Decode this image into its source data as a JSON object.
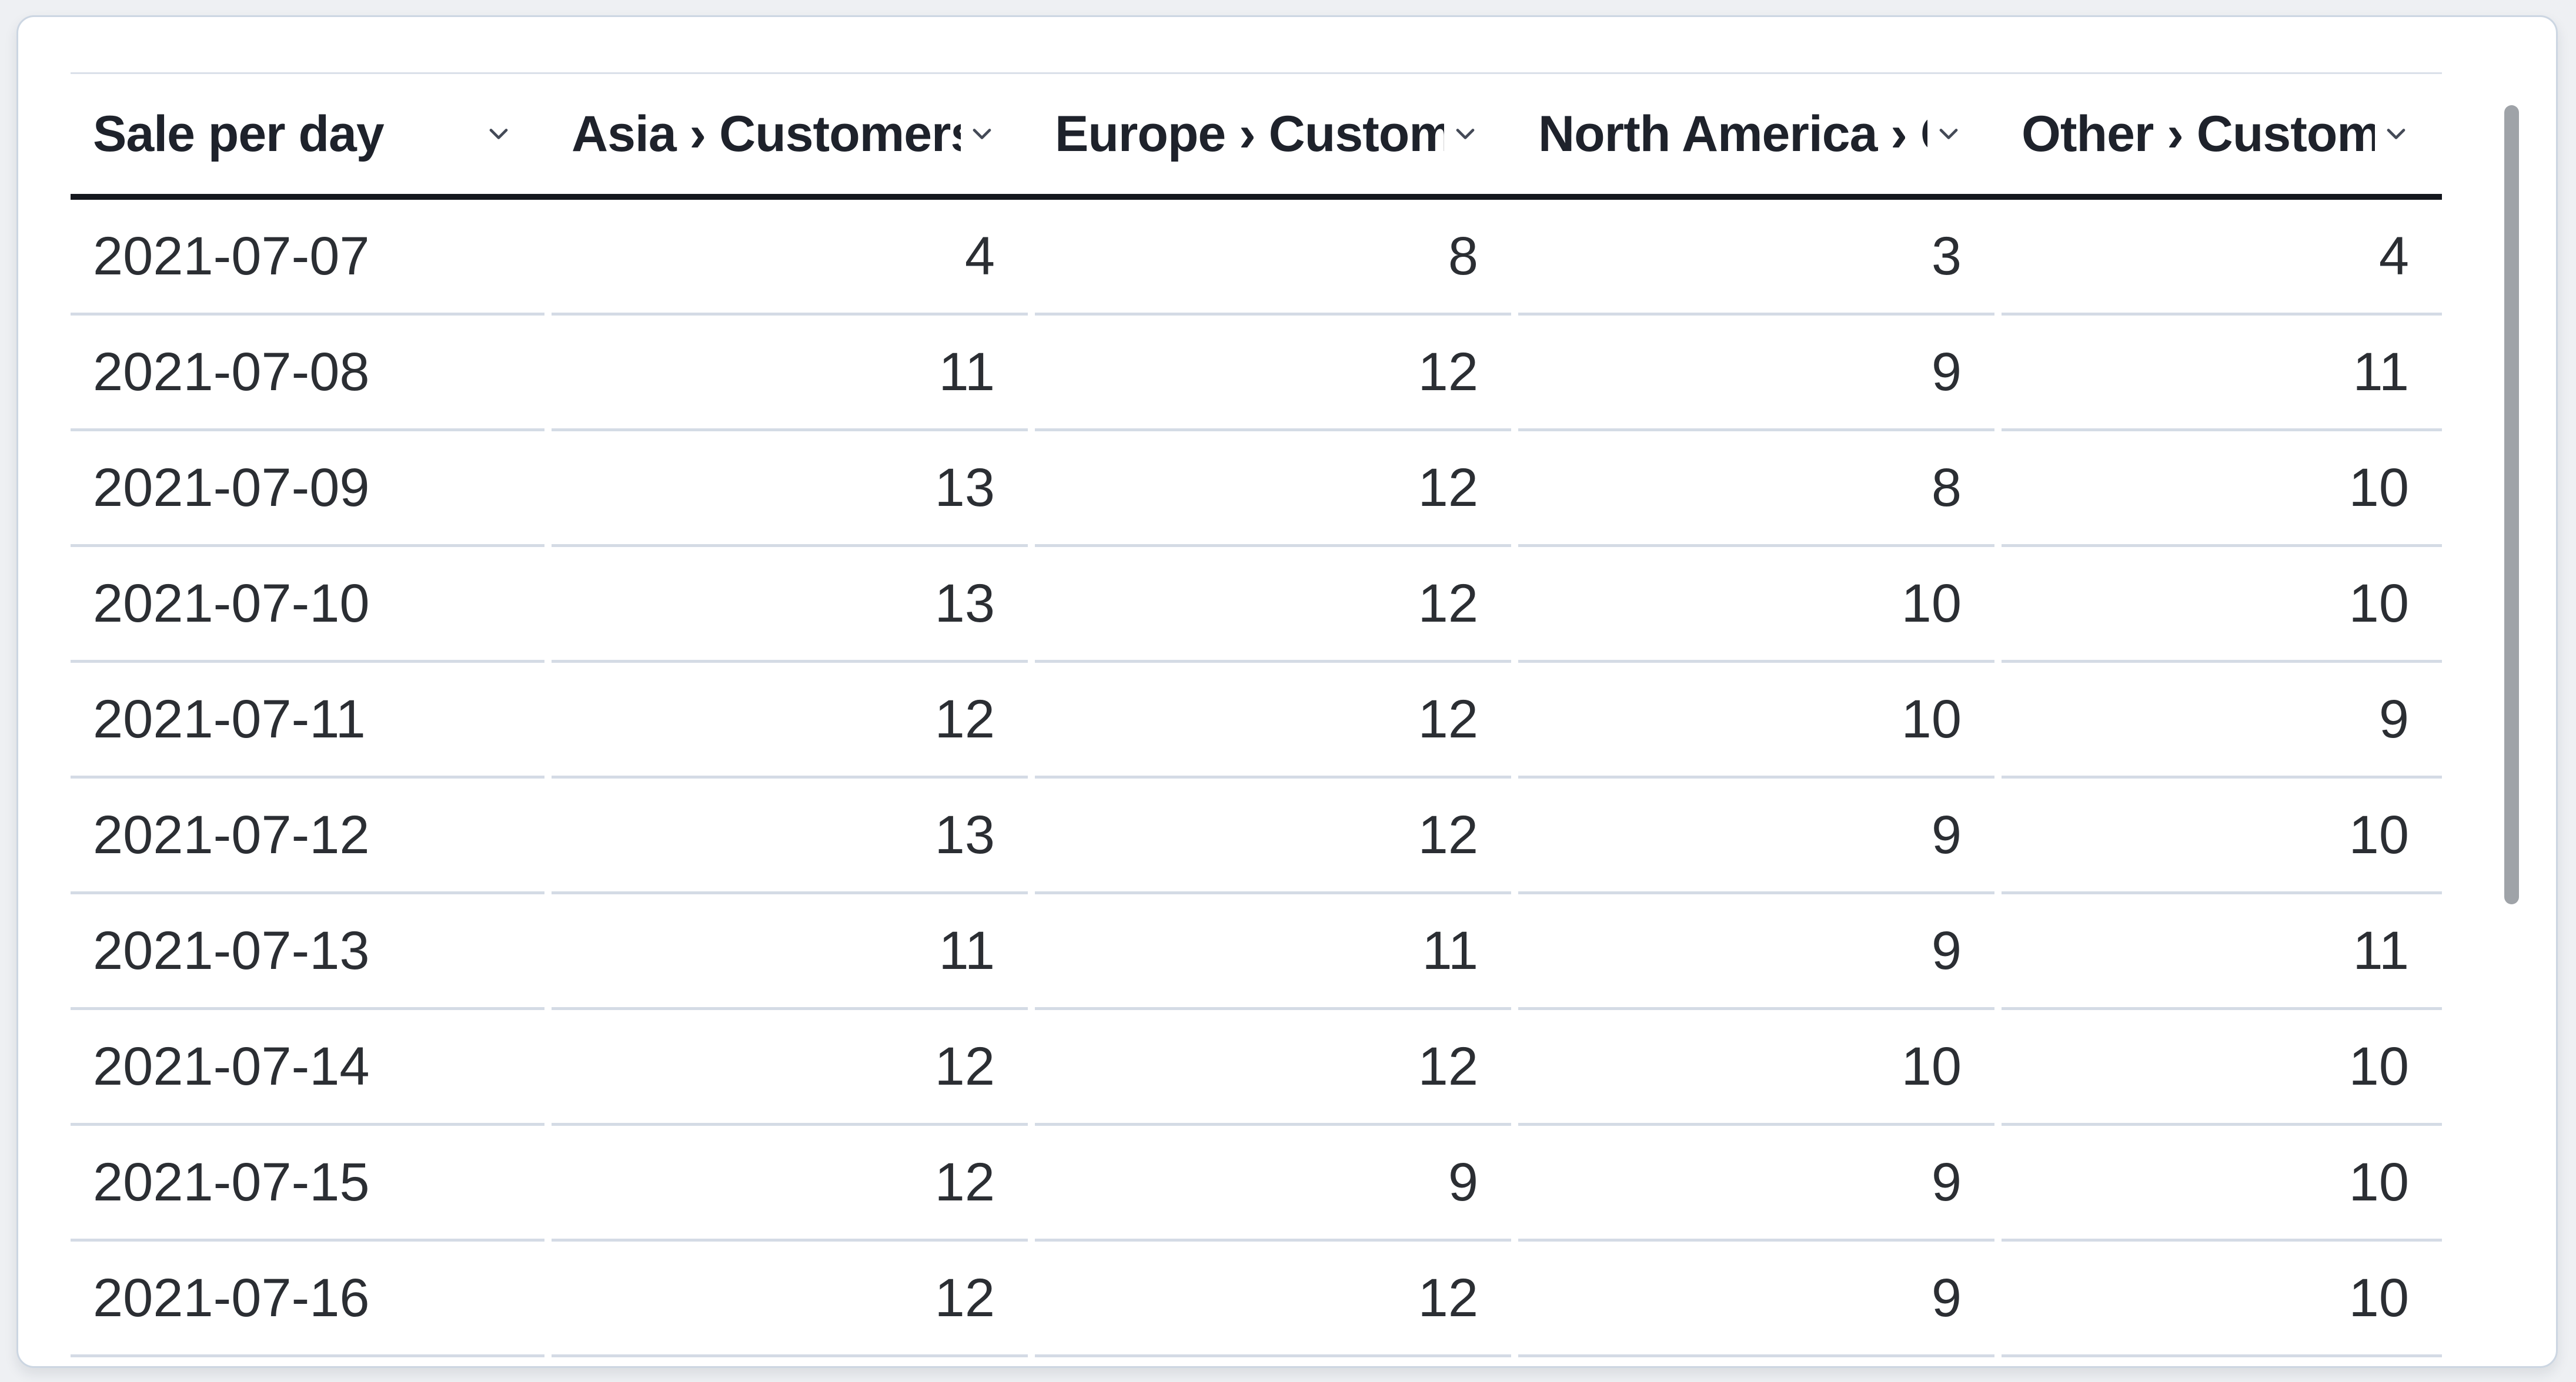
{
  "chart_data": {
    "type": "table",
    "title": "Sale per day",
    "columns": [
      {
        "label": "Sale per day",
        "align": "left"
      },
      {
        "label": "Asia › Customers",
        "align": "right"
      },
      {
        "label": "Europe › Customers",
        "align": "right"
      },
      {
        "label": "North America › Customers",
        "align": "right"
      },
      {
        "label": "Other › Customers",
        "align": "right"
      }
    ],
    "rows": [
      [
        "2021-07-07",
        4,
        8,
        3,
        4
      ],
      [
        "2021-07-08",
        11,
        12,
        9,
        11
      ],
      [
        "2021-07-09",
        13,
        12,
        8,
        10
      ],
      [
        "2021-07-10",
        13,
        12,
        10,
        10
      ],
      [
        "2021-07-11",
        12,
        12,
        10,
        9
      ],
      [
        "2021-07-12",
        13,
        12,
        9,
        10
      ],
      [
        "2021-07-13",
        11,
        11,
        9,
        11
      ],
      [
        "2021-07-14",
        12,
        12,
        10,
        10
      ],
      [
        "2021-07-15",
        12,
        9,
        9,
        10
      ],
      [
        "2021-07-16",
        12,
        12,
        9,
        10
      ]
    ]
  },
  "icons": {
    "column_sort": "chevron-down-icon"
  },
  "colors": {
    "page_bg": "#eef0f3",
    "card_bg": "#ffffff",
    "card_border": "#ccd6e2",
    "top_rule": "#dae0e9",
    "header_underline": "#14171e",
    "row_divider": "#d4dbe5",
    "header_text": "#1e222b",
    "body_text": "#2b2e33",
    "chevron": "#444a57",
    "scrollbar_thumb": "#9fa3a8"
  }
}
